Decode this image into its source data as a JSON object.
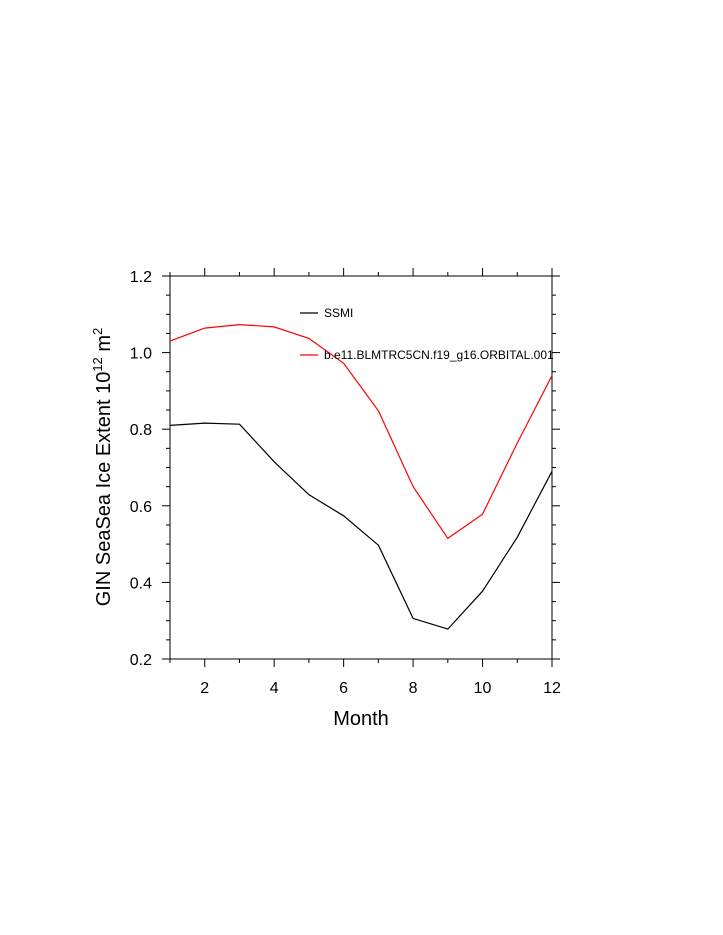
{
  "chart_data": {
    "type": "line",
    "title": "",
    "xlabel": "Month",
    "ylabel_main": "GIN SeaSea Ice Extent 10",
    "ylabel_sup": "12",
    "ylabel_unit": " m",
    "ylabel_unit_sup": "2",
    "xlim": [
      1,
      12
    ],
    "ylim": [
      0.2,
      1.2
    ],
    "x_ticks": [
      2,
      4,
      6,
      8,
      10,
      12
    ],
    "y_ticks": [
      "0.2",
      "0.4",
      "0.6",
      "0.8",
      "1.0",
      "1.2"
    ],
    "grid": false,
    "legend_position": "top-center",
    "x": [
      1,
      2,
      3,
      4,
      5,
      6,
      7,
      8,
      9,
      10,
      11,
      12
    ],
    "series": [
      {
        "name": "SSMI",
        "color": "#000000",
        "values": [
          0.81,
          0.816,
          0.813,
          0.715,
          0.629,
          0.574,
          0.497,
          0.306,
          0.278,
          0.377,
          0.518,
          0.69
        ]
      },
      {
        "name": "b.e11.BLMTRC5CN.f19_g16.ORBITAL.001",
        "color": "#ff0000",
        "values": [
          1.03,
          1.064,
          1.073,
          1.067,
          1.037,
          0.972,
          0.848,
          0.65,
          0.515,
          0.578,
          0.764,
          0.94
        ]
      }
    ]
  }
}
